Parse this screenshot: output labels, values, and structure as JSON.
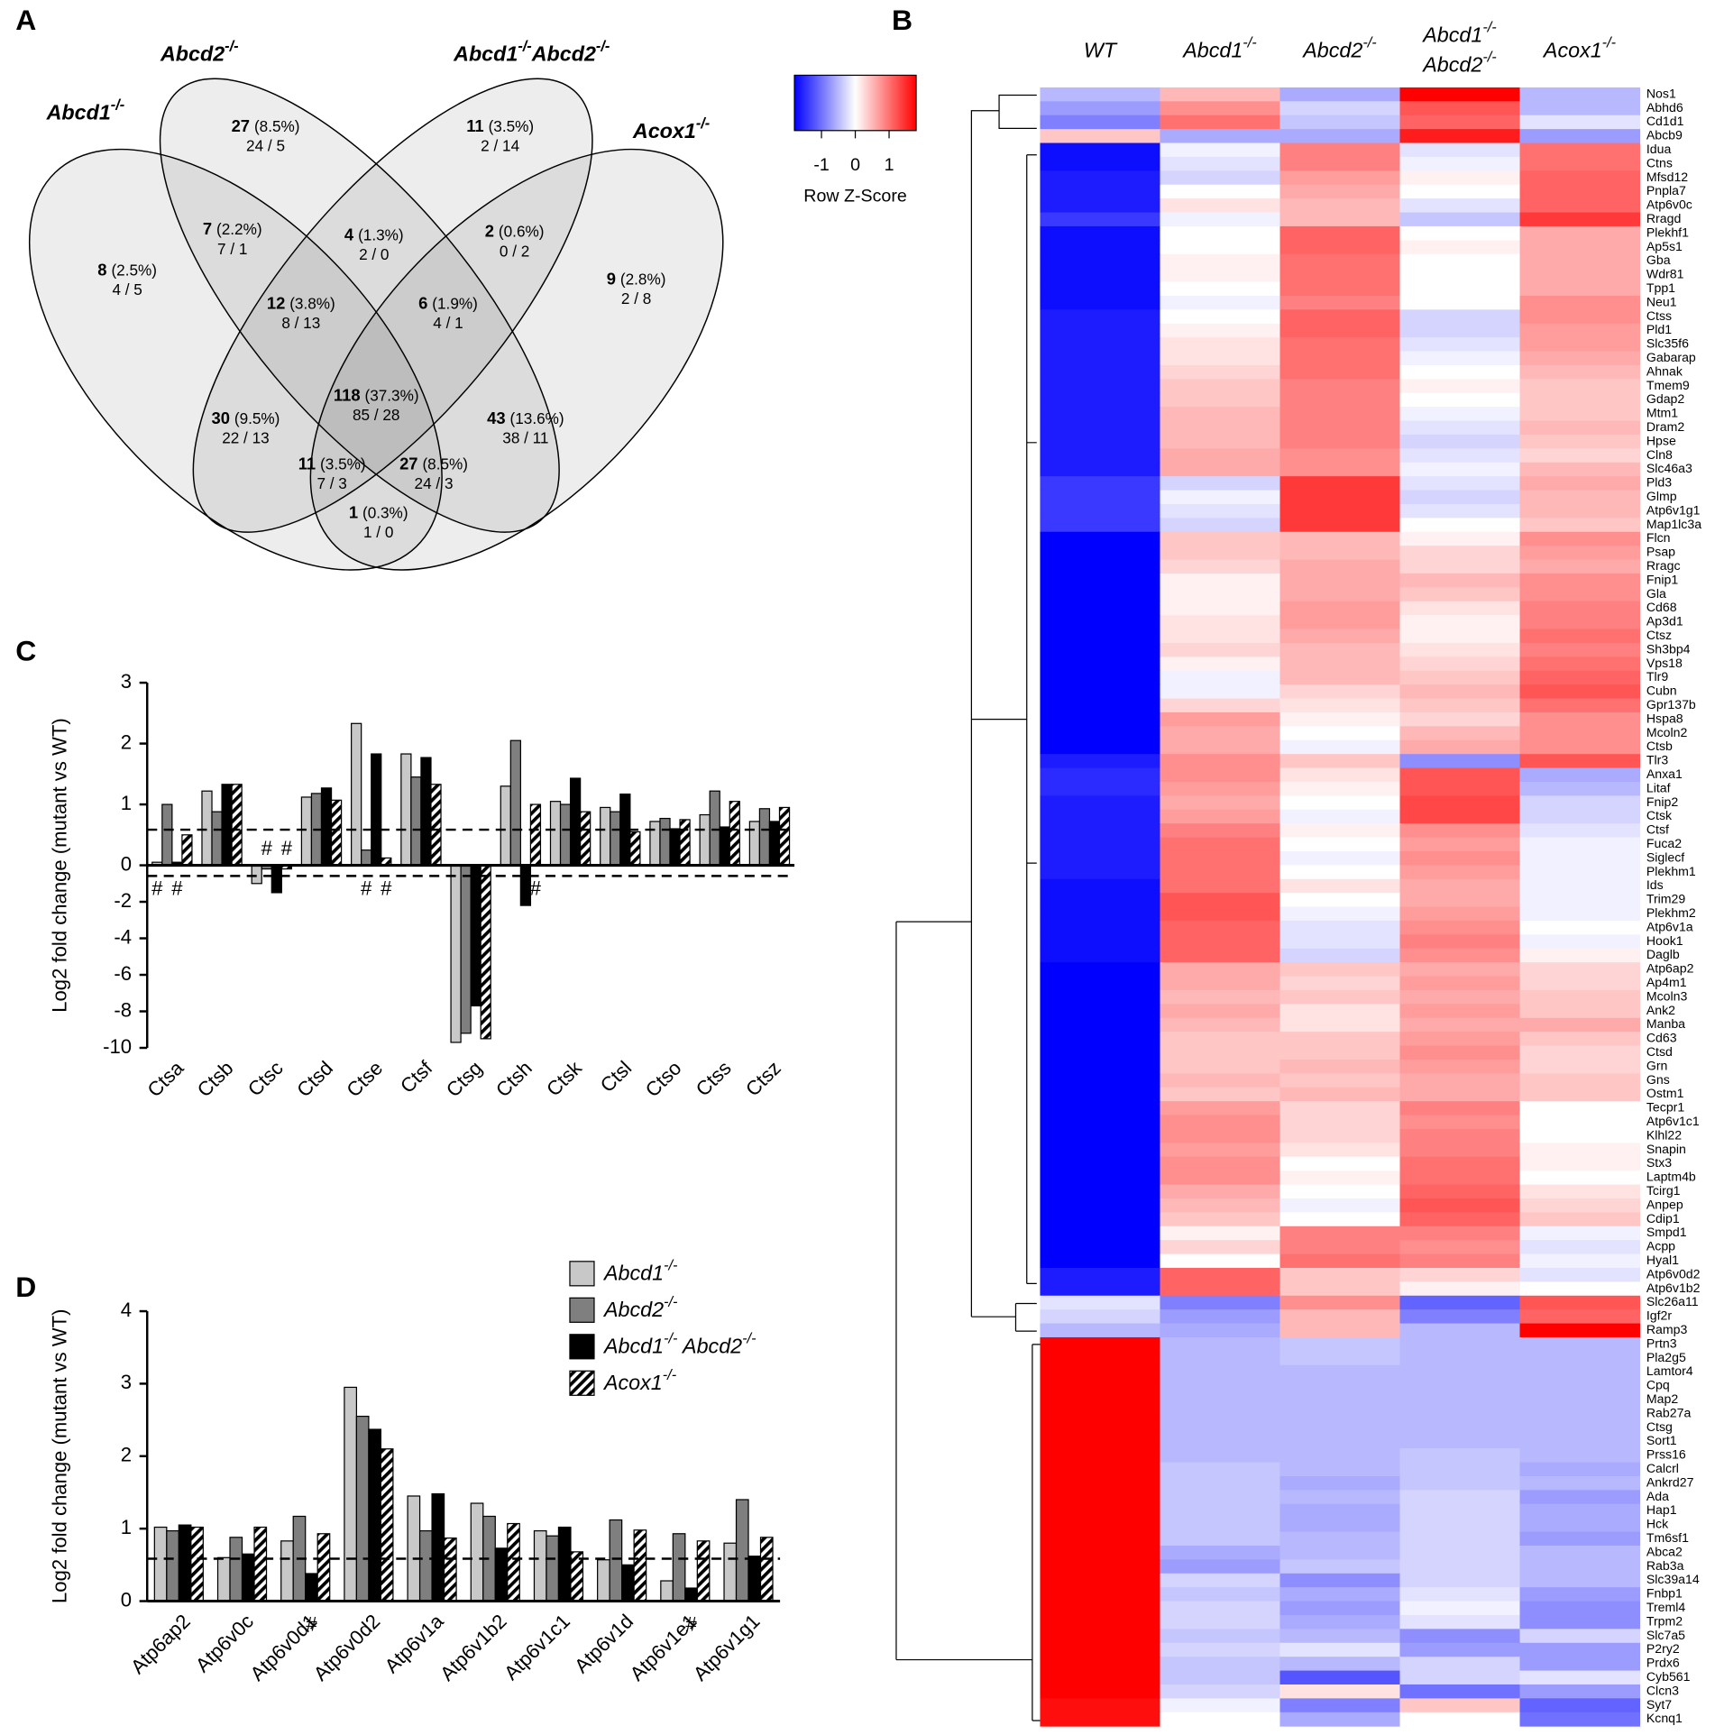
{
  "chart_data": [
    {
      "type": "venn",
      "panel": "A",
      "sets": [
        "Abcd1-/-",
        "Abcd2-/-",
        "Abcd1-/-Abcd2-/-",
        "Acox1-/-"
      ],
      "values": [
        27,
        11,
        8,
        7,
        4,
        2,
        9,
        12,
        6,
        118,
        30,
        43,
        11,
        27,
        1
      ],
      "percent_labels": [
        "(8.5%)",
        "(3.5%)",
        "(2.5%)",
        "(2.2%)",
        "(1.3%)",
        "(0.6%)",
        "(2.8%)",
        "(3.8%)",
        "(1.9%)",
        "(37.3%)",
        "(9.5%)",
        "(13.6%)",
        "(3.5%)",
        "(8.5%)",
        "(0.3%)"
      ],
      "splits": [
        "24 / 5",
        "2 / 14",
        "4 / 5",
        "7 / 1",
        "2 / 0",
        "0 / 2",
        "2 / 8",
        "8 / 13",
        "4 / 1",
        "85 / 28",
        "22 / 13",
        "38 / 11",
        "7 / 3",
        "24 / 3",
        "1 / 0"
      ]
    },
    {
      "type": "bar",
      "panel": "C",
      "y_label": "Log2 fold change (mutant vs WT)",
      "categories": [
        "Ctsa",
        "Ctsb",
        "Ctsc",
        "Ctsd",
        "Ctse",
        "Ctsf",
        "Ctsg",
        "Ctsh",
        "Ctsk",
        "Ctsl",
        "Ctso",
        "Ctss",
        "Ctsz"
      ],
      "series": [
        {
          "color": "#c8c8c8",
          "values": [
            0.05,
            1.22,
            -1.0,
            1.12,
            2.33,
            1.83,
            -9.7,
            1.3,
            1.05,
            0.95,
            0.72,
            0.83,
            0.72
          ]
        },
        {
          "color": "#7f7f7f",
          "values": [
            1.0,
            0.88,
            -0.2,
            1.18,
            0.25,
            1.45,
            -9.2,
            2.05,
            1.0,
            0.88,
            0.77,
            1.22,
            0.93
          ]
        },
        {
          "color": "#000000",
          "values": [
            0.05,
            1.33,
            -1.5,
            1.27,
            1.83,
            1.77,
            -7.7,
            -2.2,
            1.43,
            1.17,
            0.6,
            0.63,
            0.72
          ]
        },
        {
          "color": "#ffffff",
          "hatch": true,
          "values": [
            0.5,
            1.33,
            -0.2,
            1.07,
            0.12,
            1.33,
            -9.5,
            1.0,
            0.88,
            0.55,
            0.75,
            1.05,
            0.95
          ]
        }
      ],
      "ylim": [
        -10,
        3
      ],
      "yticks": [
        3,
        2,
        1,
        0,
        -2,
        -4,
        -6,
        -8,
        -10
      ],
      "split_axis": true,
      "reference_lines": [
        0.585,
        -0.585
      ],
      "annotations": [
        {
          "text": "#",
          "category": 0,
          "series": 0,
          "side": "below"
        },
        {
          "text": "#",
          "category": 0,
          "series": 2,
          "side": "below"
        },
        {
          "text": "#",
          "category": 2,
          "series": 1,
          "side": "above"
        },
        {
          "text": "#",
          "category": 2,
          "series": 3,
          "side": "above"
        },
        {
          "text": "#",
          "category": 4,
          "series": 1,
          "side": "below"
        },
        {
          "text": "#",
          "category": 4,
          "series": 3,
          "side": "below"
        },
        {
          "text": "#",
          "category": 7,
          "series": 3,
          "side": "below"
        }
      ]
    },
    {
      "type": "bar",
      "panel": "D",
      "y_label": "Log2 fold change (mutant vs WT)",
      "categories": [
        "Atp6ap2",
        "Atp6v0c",
        "Atp6v0d1",
        "Atp6v0d2",
        "Atp6v1a",
        "Atp6v1b2",
        "Atp6v1c1",
        "Atp6v1d",
        "Atp6v1e1",
        "Atp6v1g1"
      ],
      "series": [
        {
          "name": "Abcd1-/-",
          "color": "#c8c8c8",
          "values": [
            1.02,
            0.6,
            0.83,
            2.95,
            1.45,
            1.35,
            0.97,
            0.57,
            0.28,
            0.8
          ]
        },
        {
          "name": "Abcd2-/-",
          "color": "#7f7f7f",
          "values": [
            0.97,
            0.88,
            1.17,
            2.55,
            0.97,
            1.17,
            0.9,
            1.12,
            0.93,
            1.4
          ]
        },
        {
          "name": "Abcd1-/- Abcd2-/-",
          "color": "#000000",
          "values": [
            1.05,
            0.65,
            0.38,
            2.37,
            1.48,
            0.73,
            1.02,
            0.5,
            0.18,
            0.62
          ]
        },
        {
          "name": "Acox1-/-",
          "color": "#ffffff",
          "hatch": true,
          "values": [
            1.02,
            1.02,
            0.93,
            2.1,
            0.87,
            1.07,
            0.68,
            0.98,
            0.83,
            0.88
          ]
        }
      ],
      "ylim": [
        0,
        4
      ],
      "yticks": [
        4,
        3,
        2,
        1,
        0
      ],
      "legend": "upper right",
      "reference_lines": [
        0.585
      ],
      "annotations": [
        {
          "text": "#",
          "category": 2,
          "series": 2,
          "side": "below"
        },
        {
          "text": "#",
          "category": 8,
          "series": 2,
          "side": "below"
        }
      ]
    },
    {
      "type": "heatmap",
      "panel": "B",
      "columns": [
        "WT",
        "Abcd1-/-",
        "Abcd2-/-",
        "Abcd1-/- Abcd2-/-",
        "Acox1-/-"
      ],
      "rows": [
        "Nos1",
        "Abhd6",
        "Cd1d1",
        "Abcb9",
        "Idua",
        "Ctns",
        "Mfsd12",
        "Pnpla7",
        "Atp6v0c",
        "Rragd",
        "Plekhf1",
        "Ap5s1",
        "Gba",
        "Wdr81",
        "Tpp1",
        "Neu1",
        "Ctss",
        "Pld1",
        "Slc35f6",
        "Gabarap",
        "Ahnak",
        "Tmem9",
        "Gdap2",
        "Mtm1",
        "Dram2",
        "Hpse",
        "Cln8",
        "Slc46a3",
        "Pld3",
        "Glmp",
        "Atp6v1g1",
        "Map1lc3a",
        "Flcn",
        "Psap",
        "Rragc",
        "Fnip1",
        "Gla",
        "Cd68",
        "Ap3d1",
        "Ctsz",
        "Sh3bp4",
        "Vps18",
        "Tlr9",
        "Cubn",
        "Gpr137b",
        "Hspa8",
        "Mcoln2",
        "Ctsb",
        "Tlr3",
        "Anxa1",
        "Litaf",
        "Fnip2",
        "Ctsk",
        "Ctsf",
        "Fuca2",
        "Siglecf",
        "Plekhm1",
        "Ids",
        "Trim29",
        "Plekhm2",
        "Atp6v1a",
        "Hook1",
        "Daglb",
        "Atp6ap2",
        "Ap4m1",
        "Mcoln3",
        "Ank2",
        "Manba",
        "Cd63",
        "Ctsd",
        "Grn",
        "Gns",
        "Ostm1",
        "Tecpr1",
        "Atp6v1c1",
        "Klhl22",
        "Snapin",
        "Stx3",
        "Laptm4b",
        "Tcirg1",
        "Anpep",
        "Cdip1",
        "Smpd1",
        "Acpp",
        "Hyal1",
        "Atp6v0d2",
        "Atp6v1b2",
        "Slc26a11",
        "Igf2r",
        "Ramp3",
        "Prtn3",
        "Pla2g5",
        "Lamtor4",
        "Cpq",
        "Map2",
        "Rab27a",
        "Ctsg",
        "Sort1",
        "Prss16",
        "Calcrl",
        "Ankrd27",
        "Ada",
        "Hap1",
        "Hck",
        "Tm6sf1",
        "Abca2",
        "Rab3a",
        "Slc39a14",
        "Fnbp1",
        "Treml4",
        "Trpm2",
        "Slc7a5",
        "P2ry2",
        "Prdx6",
        "Cyb561",
        "Clcn3",
        "Syt7",
        "Kcnq1"
      ],
      "values": [
        [
          -0.5,
          0.5,
          -0.6,
          1.8,
          -0.5
        ],
        [
          -0.7,
          0.8,
          -0.3,
          1.2,
          -0.5
        ],
        [
          -0.9,
          1.0,
          -0.4,
          1.1,
          -0.2
        ],
        [
          0.4,
          -0.6,
          -0.6,
          1.6,
          -0.7
        ],
        [
          -1.7,
          -0.1,
          0.9,
          -0.2,
          1.0
        ],
        [
          -1.7,
          -0.2,
          0.9,
          -0.1,
          1.0
        ],
        [
          -1.6,
          -0.3,
          0.7,
          0.1,
          1.1
        ],
        [
          -1.6,
          0.0,
          0.6,
          0.0,
          1.1
        ],
        [
          -1.6,
          0.2,
          0.5,
          -0.2,
          1.1
        ],
        [
          -1.4,
          -0.1,
          0.5,
          -0.4,
          1.4
        ],
        [
          -1.7,
          0.0,
          1.1,
          0.0,
          0.6
        ],
        [
          -1.7,
          0.0,
          1.1,
          0.1,
          0.6
        ],
        [
          -1.7,
          0.1,
          1.0,
          0.0,
          0.6
        ],
        [
          -1.7,
          0.1,
          1.0,
          0.0,
          0.6
        ],
        [
          -1.7,
          0.0,
          1.0,
          0.0,
          0.6
        ],
        [
          -1.7,
          -0.1,
          0.9,
          0.0,
          0.8
        ],
        [
          -1.6,
          0.0,
          1.1,
          -0.3,
          0.8
        ],
        [
          -1.6,
          0.1,
          1.1,
          -0.3,
          0.7
        ],
        [
          -1.6,
          0.2,
          1.0,
          -0.2,
          0.7
        ],
        [
          -1.6,
          0.2,
          1.0,
          -0.1,
          0.6
        ],
        [
          -1.6,
          0.3,
          1.0,
          0.0,
          0.5
        ],
        [
          -1.6,
          0.4,
          0.9,
          0.1,
          0.4
        ],
        [
          -1.6,
          0.4,
          0.9,
          0.0,
          0.4
        ],
        [
          -1.6,
          0.5,
          0.9,
          -0.1,
          0.4
        ],
        [
          -1.6,
          0.5,
          0.9,
          -0.2,
          0.5
        ],
        [
          -1.6,
          0.5,
          0.9,
          -0.3,
          0.4
        ],
        [
          -1.6,
          0.6,
          0.8,
          -0.2,
          0.3
        ],
        [
          -1.6,
          0.6,
          0.8,
          -0.1,
          0.5
        ],
        [
          -1.4,
          -0.3,
          1.4,
          -0.2,
          0.6
        ],
        [
          -1.4,
          -0.1,
          1.4,
          -0.3,
          0.5
        ],
        [
          -1.4,
          -0.2,
          1.4,
          -0.2,
          0.5
        ],
        [
          -1.4,
          -0.3,
          1.4,
          0.0,
          0.4
        ],
        [
          -1.9,
          0.4,
          0.5,
          0.1,
          0.8
        ],
        [
          -1.9,
          0.4,
          0.5,
          0.3,
          0.7
        ],
        [
          -1.9,
          0.3,
          0.6,
          0.3,
          0.6
        ],
        [
          -1.9,
          0.1,
          0.6,
          0.5,
          0.8
        ],
        [
          -1.9,
          0.1,
          0.6,
          0.4,
          0.8
        ],
        [
          -1.9,
          0.1,
          0.7,
          0.2,
          0.9
        ],
        [
          -1.9,
          0.2,
          0.7,
          0.1,
          0.9
        ],
        [
          -1.9,
          0.2,
          0.6,
          0.1,
          1.0
        ],
        [
          -1.9,
          0.3,
          0.5,
          0.2,
          0.9
        ],
        [
          -1.9,
          0.1,
          0.5,
          0.3,
          1.0
        ],
        [
          -1.9,
          -0.1,
          0.5,
          0.4,
          1.1
        ],
        [
          -1.9,
          -0.1,
          0.3,
          0.5,
          1.2
        ],
        [
          -1.9,
          0.3,
          0.2,
          0.4,
          1.0
        ],
        [
          -1.9,
          0.7,
          0.1,
          0.3,
          0.8
        ],
        [
          -1.9,
          0.6,
          0.0,
          0.5,
          0.8
        ],
        [
          -1.9,
          0.6,
          -0.1,
          0.6,
          0.8
        ],
        [
          -1.6,
          0.8,
          0.4,
          -0.8,
          1.2
        ],
        [
          -1.5,
          0.8,
          0.2,
          1.2,
          -0.6
        ],
        [
          -1.5,
          0.7,
          0.1,
          1.2,
          -0.5
        ],
        [
          -1.6,
          0.6,
          0.0,
          1.3,
          -0.3
        ],
        [
          -1.6,
          0.7,
          -0.1,
          1.3,
          -0.3
        ],
        [
          -1.6,
          0.9,
          0.1,
          0.8,
          -0.2
        ],
        [
          -1.6,
          1.0,
          0.0,
          0.7,
          -0.1
        ],
        [
          -1.6,
          1.0,
          -0.1,
          0.8,
          -0.1
        ],
        [
          -1.6,
          1.0,
          0.0,
          0.7,
          -0.1
        ],
        [
          -1.7,
          1.0,
          0.2,
          0.6,
          -0.1
        ],
        [
          -1.7,
          1.2,
          0.0,
          0.6,
          -0.1
        ],
        [
          -1.7,
          1.2,
          -0.1,
          0.7,
          -0.1
        ],
        [
          -1.7,
          1.1,
          -0.2,
          0.8,
          0.0
        ],
        [
          -1.7,
          1.1,
          -0.2,
          0.9,
          -0.1
        ],
        [
          -1.7,
          1.1,
          -0.3,
          0.8,
          0.1
        ],
        [
          -1.9,
          0.6,
          0.4,
          0.6,
          0.3
        ],
        [
          -1.9,
          0.6,
          0.3,
          0.7,
          0.3
        ],
        [
          -1.9,
          0.5,
          0.4,
          0.6,
          0.4
        ],
        [
          -1.9,
          0.6,
          0.2,
          0.7,
          0.4
        ],
        [
          -1.9,
          0.5,
          0.2,
          0.6,
          0.6
        ],
        [
          -1.9,
          0.4,
          0.4,
          0.7,
          0.4
        ],
        [
          -1.9,
          0.4,
          0.4,
          0.8,
          0.3
        ],
        [
          -1.9,
          0.4,
          0.5,
          0.7,
          0.3
        ],
        [
          -1.9,
          0.5,
          0.4,
          0.6,
          0.4
        ],
        [
          -1.9,
          0.4,
          0.5,
          0.6,
          0.4
        ],
        [
          -1.9,
          0.7,
          0.3,
          0.9,
          0.0
        ],
        [
          -1.9,
          0.8,
          0.3,
          0.8,
          0.0
        ],
        [
          -1.9,
          0.8,
          0.3,
          0.9,
          0.0
        ],
        [
          -1.9,
          0.7,
          0.2,
          0.9,
          0.1
        ],
        [
          -1.9,
          0.8,
          0.0,
          1.0,
          0.1
        ],
        [
          -1.9,
          0.8,
          0.1,
          1.0,
          0.0
        ],
        [
          -1.9,
          0.6,
          0.0,
          1.1,
          0.2
        ],
        [
          -1.9,
          0.5,
          -0.1,
          1.2,
          0.3
        ],
        [
          -1.9,
          0.4,
          0.0,
          1.1,
          0.4
        ],
        [
          -1.8,
          0.1,
          0.9,
          0.9,
          -0.1
        ],
        [
          -1.8,
          0.3,
          0.9,
          0.8,
          -0.2
        ],
        [
          -1.8,
          0.0,
          1.0,
          0.9,
          -0.1
        ],
        [
          -1.6,
          1.1,
          0.4,
          0.3,
          -0.2
        ],
        [
          -1.6,
          1.1,
          0.4,
          0.1,
          0.0
        ],
        [
          -0.2,
          -0.9,
          0.8,
          -1.1,
          1.2
        ],
        [
          -0.3,
          -0.7,
          0.5,
          -0.9,
          1.1
        ],
        [
          -0.5,
          -0.6,
          0.5,
          -0.5,
          1.8
        ],
        [
          1.9,
          -0.5,
          -0.4,
          -0.5,
          -0.5
        ],
        [
          1.9,
          -0.5,
          -0.4,
          -0.5,
          -0.5
        ],
        [
          1.9,
          -0.5,
          -0.5,
          -0.5,
          -0.5
        ],
        [
          1.9,
          -0.5,
          -0.5,
          -0.5,
          -0.5
        ],
        [
          1.9,
          -0.5,
          -0.5,
          -0.5,
          -0.5
        ],
        [
          1.9,
          -0.5,
          -0.5,
          -0.5,
          -0.5
        ],
        [
          1.9,
          -0.5,
          -0.5,
          -0.5,
          -0.5
        ],
        [
          1.9,
          -0.5,
          -0.5,
          -0.5,
          -0.5
        ],
        [
          1.9,
          -0.5,
          -0.5,
          -0.4,
          -0.5
        ],
        [
          1.9,
          -0.4,
          -0.5,
          -0.4,
          -0.6
        ],
        [
          1.9,
          -0.4,
          -0.6,
          -0.4,
          -0.5
        ],
        [
          1.9,
          -0.4,
          -0.5,
          -0.3,
          -0.7
        ],
        [
          1.9,
          -0.4,
          -0.6,
          -0.3,
          -0.6
        ],
        [
          1.9,
          -0.4,
          -0.6,
          -0.3,
          -0.6
        ],
        [
          1.9,
          -0.4,
          -0.5,
          -0.3,
          -0.7
        ],
        [
          1.9,
          -0.6,
          -0.5,
          -0.3,
          -0.5
        ],
        [
          1.9,
          -0.7,
          -0.4,
          -0.3,
          -0.5
        ],
        [
          1.9,
          -0.3,
          -0.8,
          -0.3,
          -0.5
        ],
        [
          1.9,
          -0.4,
          -0.6,
          -0.2,
          -0.7
        ],
        [
          1.9,
          -0.3,
          -0.7,
          -0.1,
          -0.8
        ],
        [
          1.9,
          -0.3,
          -0.6,
          -0.2,
          -0.8
        ],
        [
          1.9,
          -0.4,
          -0.5,
          -0.8,
          -0.3
        ],
        [
          1.9,
          -0.3,
          -0.2,
          -0.7,
          -0.7
        ],
        [
          1.9,
          -0.4,
          -0.5,
          -0.3,
          -0.7
        ],
        [
          1.8,
          -0.4,
          -1.2,
          -0.3,
          -0.2
        ],
        [
          1.8,
          -0.3,
          0.2,
          -1.0,
          -0.7
        ],
        [
          1.7,
          -0.1,
          -0.9,
          0.4,
          -1.1
        ],
        [
          1.7,
          0.0,
          -0.6,
          0.0,
          -1.0
        ]
      ],
      "zlim": [
        -1.8,
        1.8
      ],
      "key_ticks": [
        -1,
        0,
        1
      ],
      "key_label": "Row Z-Score"
    }
  ]
}
